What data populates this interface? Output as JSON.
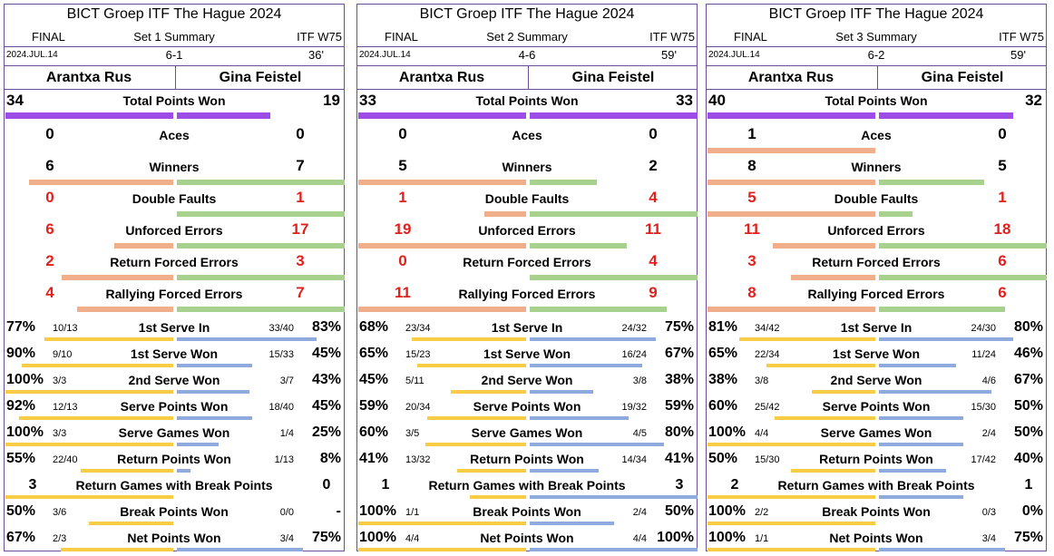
{
  "colors": {
    "border": "#6b4e96",
    "total": "#9b4de6",
    "p1_count": "#f0ae8a",
    "p2_count": "#a9d18e",
    "p1_pct": "#f8cd45",
    "p2_pct": "#8faadc",
    "red_value": "#e0211d"
  },
  "chart_data": [
    {
      "type": "bar",
      "title": "BICT Groep ITF The Hague 2024",
      "round": "FINAL",
      "set_label": "Set 1 Summary",
      "level": "ITF W75",
      "date": "2024.JUL.14",
      "score": "6-1",
      "duration": "36'",
      "players": [
        "Arantxa Rus",
        "Gina Feistel"
      ],
      "total_points": {
        "label": "Total Points Won",
        "p1": "34",
        "p2": "19",
        "p1v": 34,
        "p2v": 19
      },
      "count_stats": [
        {
          "label": "Aces",
          "p1": "0",
          "p2": "0",
          "p1v": 0,
          "p2v": 0,
          "red": false
        },
        {
          "label": "Winners",
          "p1": "6",
          "p2": "7",
          "p1v": 6,
          "p2v": 7,
          "red": false
        },
        {
          "label": "Double Faults",
          "p1": "0",
          "p2": "1",
          "p1v": 0,
          "p2v": 1,
          "red": true
        },
        {
          "label": "Unforced Errors",
          "p1": "6",
          "p2": "17",
          "p1v": 6,
          "p2v": 17,
          "red": true
        },
        {
          "label": "Return Forced Errors",
          "p1": "2",
          "p2": "3",
          "p1v": 2,
          "p2v": 3,
          "red": true
        },
        {
          "label": "Rallying Forced Errors",
          "p1": "4",
          "p2": "7",
          "p1v": 4,
          "p2v": 7,
          "red": true
        }
      ],
      "pct_stats": [
        {
          "label": "1st Serve In",
          "p1": "77%",
          "p1f": "10/13",
          "p2": "83%",
          "p2f": "33/40",
          "p1v": 77,
          "p2v": 83
        },
        {
          "label": "1st Serve Won",
          "p1": "90%",
          "p1f": "9/10",
          "p2": "45%",
          "p2f": "15/33",
          "p1v": 90,
          "p2v": 45
        },
        {
          "label": "2nd Serve Won",
          "p1": "100%",
          "p1f": "3/3",
          "p2": "43%",
          "p2f": "3/7",
          "p1v": 100,
          "p2v": 43
        },
        {
          "label": "Serve Points Won",
          "p1": "92%",
          "p1f": "12/13",
          "p2": "45%",
          "p2f": "18/40",
          "p1v": 92,
          "p2v": 45
        },
        {
          "label": "Serve Games Won",
          "p1": "100%",
          "p1f": "3/3",
          "p2": "25%",
          "p2f": "1/4",
          "p1v": 100,
          "p2v": 25
        },
        {
          "label": "Return Points Won",
          "p1": "55%",
          "p1f": "22/40",
          "p2": "8%",
          "p2f": "1/13",
          "p1v": 55,
          "p2v": 8
        },
        {
          "label": "Return Games with Break Points",
          "p1": "3",
          "p1f": "",
          "p2": "0",
          "p2f": "",
          "p1v": 3,
          "p2v": 0,
          "count": true
        },
        {
          "label": "Break Points Won",
          "p1": "50%",
          "p1f": "3/6",
          "p2": "-",
          "p2f": "0/0",
          "p1v": 50,
          "p2v": 0
        },
        {
          "label": "Net Points Won",
          "p1": "67%",
          "p1f": "2/3",
          "p2": "75%",
          "p2f": "3/4",
          "p1v": 67,
          "p2v": 75
        }
      ]
    },
    {
      "type": "bar",
      "title": "BICT Groep ITF The Hague 2024",
      "round": "FINAL",
      "set_label": "Set 2 Summary",
      "level": "ITF W75",
      "date": "2024.JUL.14",
      "score": "4-6",
      "duration": "59'",
      "players": [
        "Arantxa Rus",
        "Gina Feistel"
      ],
      "total_points": {
        "label": "Total Points Won",
        "p1": "33",
        "p2": "33",
        "p1v": 33,
        "p2v": 33
      },
      "count_stats": [
        {
          "label": "Aces",
          "p1": "0",
          "p2": "0",
          "p1v": 0,
          "p2v": 0,
          "red": false
        },
        {
          "label": "Winners",
          "p1": "5",
          "p2": "2",
          "p1v": 5,
          "p2v": 2,
          "red": false
        },
        {
          "label": "Double Faults",
          "p1": "1",
          "p2": "4",
          "p1v": 1,
          "p2v": 4,
          "red": true
        },
        {
          "label": "Unforced Errors",
          "p1": "19",
          "p2": "11",
          "p1v": 19,
          "p2v": 11,
          "red": true
        },
        {
          "label": "Return Forced Errors",
          "p1": "0",
          "p2": "4",
          "p1v": 0,
          "p2v": 4,
          "red": true
        },
        {
          "label": "Rallying Forced Errors",
          "p1": "11",
          "p2": "9",
          "p1v": 11,
          "p2v": 9,
          "red": true
        }
      ],
      "pct_stats": [
        {
          "label": "1st Serve In",
          "p1": "68%",
          "p1f": "23/34",
          "p2": "75%",
          "p2f": "24/32",
          "p1v": 68,
          "p2v": 75
        },
        {
          "label": "1st Serve Won",
          "p1": "65%",
          "p1f": "15/23",
          "p2": "67%",
          "p2f": "16/24",
          "p1v": 65,
          "p2v": 67
        },
        {
          "label": "2nd Serve Won",
          "p1": "45%",
          "p1f": "5/11",
          "p2": "38%",
          "p2f": "3/8",
          "p1v": 45,
          "p2v": 38
        },
        {
          "label": "Serve Points Won",
          "p1": "59%",
          "p1f": "20/34",
          "p2": "59%",
          "p2f": "19/32",
          "p1v": 59,
          "p2v": 59
        },
        {
          "label": "Serve Games Won",
          "p1": "60%",
          "p1f": "3/5",
          "p2": "80%",
          "p2f": "4/5",
          "p1v": 60,
          "p2v": 80
        },
        {
          "label": "Return Points Won",
          "p1": "41%",
          "p1f": "13/32",
          "p2": "41%",
          "p2f": "14/34",
          "p1v": 41,
          "p2v": 41
        },
        {
          "label": "Return Games with Break Points",
          "p1": "1",
          "p1f": "",
          "p2": "3",
          "p2f": "",
          "p1v": 1,
          "p2v": 3,
          "count": true
        },
        {
          "label": "Break Points Won",
          "p1": "100%",
          "p1f": "1/1",
          "p2": "50%",
          "p2f": "2/4",
          "p1v": 100,
          "p2v": 50
        },
        {
          "label": "Net Points Won",
          "p1": "100%",
          "p1f": "4/4",
          "p2": "100%",
          "p2f": "4/4",
          "p1v": 100,
          "p2v": 100
        }
      ]
    },
    {
      "type": "bar",
      "title": "BICT Groep ITF The Hague 2024",
      "round": "FINAL",
      "set_label": "Set 3 Summary",
      "level": "ITF W75",
      "date": "2024.JUL.14",
      "score": "6-2",
      "duration": "59'",
      "players": [
        "Arantxa Rus",
        "Gina Feistel"
      ],
      "total_points": {
        "label": "Total Points Won",
        "p1": "40",
        "p2": "32",
        "p1v": 40,
        "p2v": 32
      },
      "count_stats": [
        {
          "label": "Aces",
          "p1": "1",
          "p2": "0",
          "p1v": 1,
          "p2v": 0,
          "red": false
        },
        {
          "label": "Winners",
          "p1": "8",
          "p2": "5",
          "p1v": 8,
          "p2v": 5,
          "red": false
        },
        {
          "label": "Double Faults",
          "p1": "5",
          "p2": "1",
          "p1v": 5,
          "p2v": 1,
          "red": true
        },
        {
          "label": "Unforced Errors",
          "p1": "11",
          "p2": "18",
          "p1v": 11,
          "p2v": 18,
          "red": true
        },
        {
          "label": "Return Forced Errors",
          "p1": "3",
          "p2": "6",
          "p1v": 3,
          "p2v": 6,
          "red": true
        },
        {
          "label": "Rallying Forced Errors",
          "p1": "8",
          "p2": "6",
          "p1v": 8,
          "p2v": 6,
          "red": true
        }
      ],
      "pct_stats": [
        {
          "label": "1st Serve In",
          "p1": "81%",
          "p1f": "34/42",
          "p2": "80%",
          "p2f": "24/30",
          "p1v": 81,
          "p2v": 80
        },
        {
          "label": "1st Serve Won",
          "p1": "65%",
          "p1f": "22/34",
          "p2": "46%",
          "p2f": "11/24",
          "p1v": 65,
          "p2v": 46
        },
        {
          "label": "2nd Serve Won",
          "p1": "38%",
          "p1f": "3/8",
          "p2": "67%",
          "p2f": "4/6",
          "p1v": 38,
          "p2v": 67
        },
        {
          "label": "Serve Points Won",
          "p1": "60%",
          "p1f": "25/42",
          "p2": "50%",
          "p2f": "15/30",
          "p1v": 60,
          "p2v": 50
        },
        {
          "label": "Serve Games Won",
          "p1": "100%",
          "p1f": "4/4",
          "p2": "50%",
          "p2f": "2/4",
          "p1v": 100,
          "p2v": 50
        },
        {
          "label": "Return Points Won",
          "p1": "50%",
          "p1f": "15/30",
          "p2": "40%",
          "p2f": "17/42",
          "p1v": 50,
          "p2v": 40
        },
        {
          "label": "Return Games with Break Points",
          "p1": "2",
          "p1f": "",
          "p2": "1",
          "p2f": "",
          "p1v": 2,
          "p2v": 1,
          "count": true
        },
        {
          "label": "Break Points Won",
          "p1": "100%",
          "p1f": "2/2",
          "p2": "0%",
          "p2f": "0/3",
          "p1v": 100,
          "p2v": 0
        },
        {
          "label": "Net Points Won",
          "p1": "100%",
          "p1f": "1/1",
          "p2": "75%",
          "p2f": "3/4",
          "p1v": 100,
          "p2v": 75
        }
      ]
    }
  ]
}
